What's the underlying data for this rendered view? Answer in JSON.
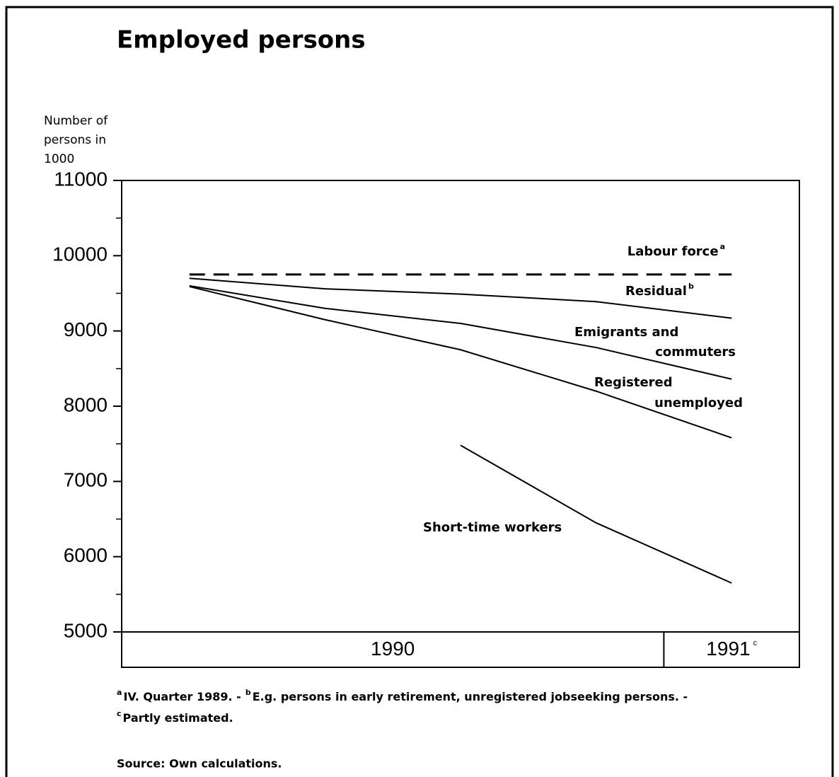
{
  "chart_data": {
    "type": "line",
    "title": "Employed persons",
    "y_label": [
      "Number of",
      "persons in",
      "1000"
    ],
    "categories": [
      null,
      null,
      null,
      null,
      null
    ],
    "category_groups": [
      {
        "label": "1990",
        "categories": 4
      },
      {
        "label": "1991",
        "mark": "c",
        "categories": 1
      }
    ],
    "ylim": [
      5000,
      11000
    ],
    "yticks": [
      5000,
      6000,
      7000,
      8000,
      9000,
      10000,
      11000
    ],
    "minor_yticks": [
      5500,
      6500,
      7500,
      8500,
      9500,
      10500
    ],
    "series": [
      {
        "label": [
          "Labour force"
        ],
        "mark": "a",
        "color": "#000000",
        "dash": true,
        "values": [
          9750,
          9750,
          9750,
          9750,
          9750
        ]
      },
      {
        "label": [
          "Residual"
        ],
        "mark": "b",
        "color": "#000000",
        "values": [
          9700,
          9560,
          9490,
          9390,
          9170
        ]
      },
      {
        "label": [
          "Emigrants and",
          "commuters"
        ],
        "color": "#000000",
        "values": [
          9600,
          9300,
          9100,
          8780,
          8360
        ]
      },
      {
        "label": [
          "Registered",
          "unemployed"
        ],
        "color": "#000000",
        "values": [
          9590,
          9150,
          8750,
          8200,
          7580
        ]
      },
      {
        "label": [
          "Short-time workers"
        ],
        "color": "#000000",
        "values": [
          null,
          null,
          7480,
          6450,
          5650
        ]
      }
    ],
    "footnotes": [
      {
        "mark": "a",
        "text": "IV. Quarter 1989. -"
      },
      {
        "mark": "b",
        "text": "E.g. persons in early retirement, unregistered jobseeking persons. -"
      },
      {
        "mark": "c",
        "text": "Partly estimated."
      }
    ],
    "source": "Source: Own calculations."
  }
}
